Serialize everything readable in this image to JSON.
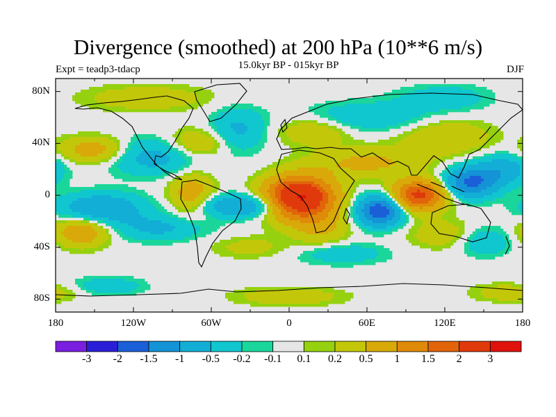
{
  "title": "Divergence (smoothed) at 200 hPa (10**6 m/s)",
  "experiment": "Expt = teadp3-tdacp",
  "subtitle": "15.0kyr BP - 015kyr BP",
  "season": "DJF",
  "lat_ticks": [
    "80N",
    "40N",
    "0",
    "40S",
    "80S"
  ],
  "lon_ticks": [
    "180",
    "120W",
    "60W",
    "0",
    "60E",
    "120E",
    "180"
  ],
  "colorbar": {
    "levels": [
      "-3",
      "-2",
      "-1.5",
      "-1",
      "-0.5",
      "-0.2",
      "-0.1",
      "0.1",
      "0.2",
      "0.5",
      "1",
      "1.5",
      "2",
      "3"
    ],
    "colors": [
      "#7a1fe0",
      "#2a1ed8",
      "#1b5fd8",
      "#1493d6",
      "#12aed6",
      "#10c6cf",
      "#1bd69a",
      "#e6e6e6",
      "#95d10f",
      "#c3c70a",
      "#d9a90a",
      "#df8a08",
      "#e1640a",
      "#e03a0c",
      "#e0120c"
    ]
  },
  "map": {
    "background_color": "#e6e6e6",
    "coastline_color": "#000000"
  },
  "chart_data": {
    "type": "heatmap",
    "title": "Divergence (smoothed) at 200 hPa (10**6 m/s)",
    "projection": "cylindrical equidistant",
    "xlim": [
      -180,
      180
    ],
    "ylim": [
      -90,
      90
    ],
    "x_ticks_deg": [
      -180,
      -120,
      -60,
      0,
      60,
      120,
      180
    ],
    "y_ticks_deg": [
      80,
      40,
      0,
      -40,
      -80
    ],
    "contour_levels": [
      -3,
      -2,
      -1.5,
      -1,
      -0.5,
      -0.2,
      -0.1,
      0.1,
      0.2,
      0.5,
      1,
      1.5,
      2,
      3
    ],
    "anomalies": [
      {
        "lon": 8,
        "lat": -2,
        "sx": 18,
        "sy": 11,
        "v": 3.2
      },
      {
        "lon": 100,
        "lat": 0,
        "sx": 14,
        "sy": 8,
        "v": 2.2
      },
      {
        "lon": 70,
        "lat": -12,
        "sx": 12,
        "sy": 8,
        "v": -2.0
      },
      {
        "lon": 140,
        "lat": 10,
        "sx": 14,
        "sy": 8,
        "v": -1.6
      },
      {
        "lon": -35,
        "lat": -8,
        "sx": 26,
        "sy": 6,
        "v": -1.1
      },
      {
        "lon": 60,
        "lat": 25,
        "sx": 30,
        "sy": 8,
        "v": 0.6
      },
      {
        "lon": 25,
        "lat": -25,
        "sx": 15,
        "sy": 10,
        "v": 0.5
      },
      {
        "lon": -145,
        "lat": -10,
        "sx": 22,
        "sy": 8,
        "v": -1.0
      },
      {
        "lon": -150,
        "lat": 35,
        "sx": 18,
        "sy": 7,
        "v": 0.8
      },
      {
        "lon": -160,
        "lat": -28,
        "sx": 15,
        "sy": 8,
        "v": 0.9
      },
      {
        "lon": -75,
        "lat": 0,
        "sx": 12,
        "sy": 12,
        "v": 0.8
      },
      {
        "lon": -100,
        "lat": -25,
        "sx": 25,
        "sy": 7,
        "v": -0.6
      },
      {
        "lon": -105,
        "lat": 30,
        "sx": 25,
        "sy": 10,
        "v": -0.7
      },
      {
        "lon": -70,
        "lat": 40,
        "sx": 18,
        "sy": 8,
        "v": 0.6
      },
      {
        "lon": -40,
        "lat": 50,
        "sx": 15,
        "sy": 12,
        "v": -0.6
      },
      {
        "lon": 60,
        "lat": 60,
        "sx": 35,
        "sy": 8,
        "v": -0.5
      },
      {
        "lon": 120,
        "lat": 45,
        "sx": 25,
        "sy": 10,
        "v": 0.5
      },
      {
        "lon": 165,
        "lat": 20,
        "sx": 14,
        "sy": 8,
        "v": -0.8
      },
      {
        "lon": -110,
        "lat": 75,
        "sx": 35,
        "sy": 7,
        "v": 0.4
      },
      {
        "lon": 120,
        "lat": 75,
        "sx": 25,
        "sy": 7,
        "v": -0.4
      },
      {
        "lon": 150,
        "lat": -35,
        "sx": 15,
        "sy": 8,
        "v": -0.5
      },
      {
        "lon": 120,
        "lat": -30,
        "sx": 20,
        "sy": 8,
        "v": 0.4
      },
      {
        "lon": -30,
        "lat": -40,
        "sx": 22,
        "sy": 6,
        "v": 0.3
      },
      {
        "lon": 40,
        "lat": -45,
        "sx": 25,
        "sy": 6,
        "v": -0.4
      },
      {
        "lon": 0,
        "lat": -78,
        "sx": 30,
        "sy": 5,
        "v": 0.4
      },
      {
        "lon": -140,
        "lat": -70,
        "sx": 20,
        "sy": 5,
        "v": -0.4
      },
      {
        "lon": 170,
        "lat": -75,
        "sx": 20,
        "sy": 5,
        "v": 0.4
      },
      {
        "lon": 20,
        "lat": 50,
        "sx": 20,
        "sy": 8,
        "v": 0.5
      }
    ]
  }
}
